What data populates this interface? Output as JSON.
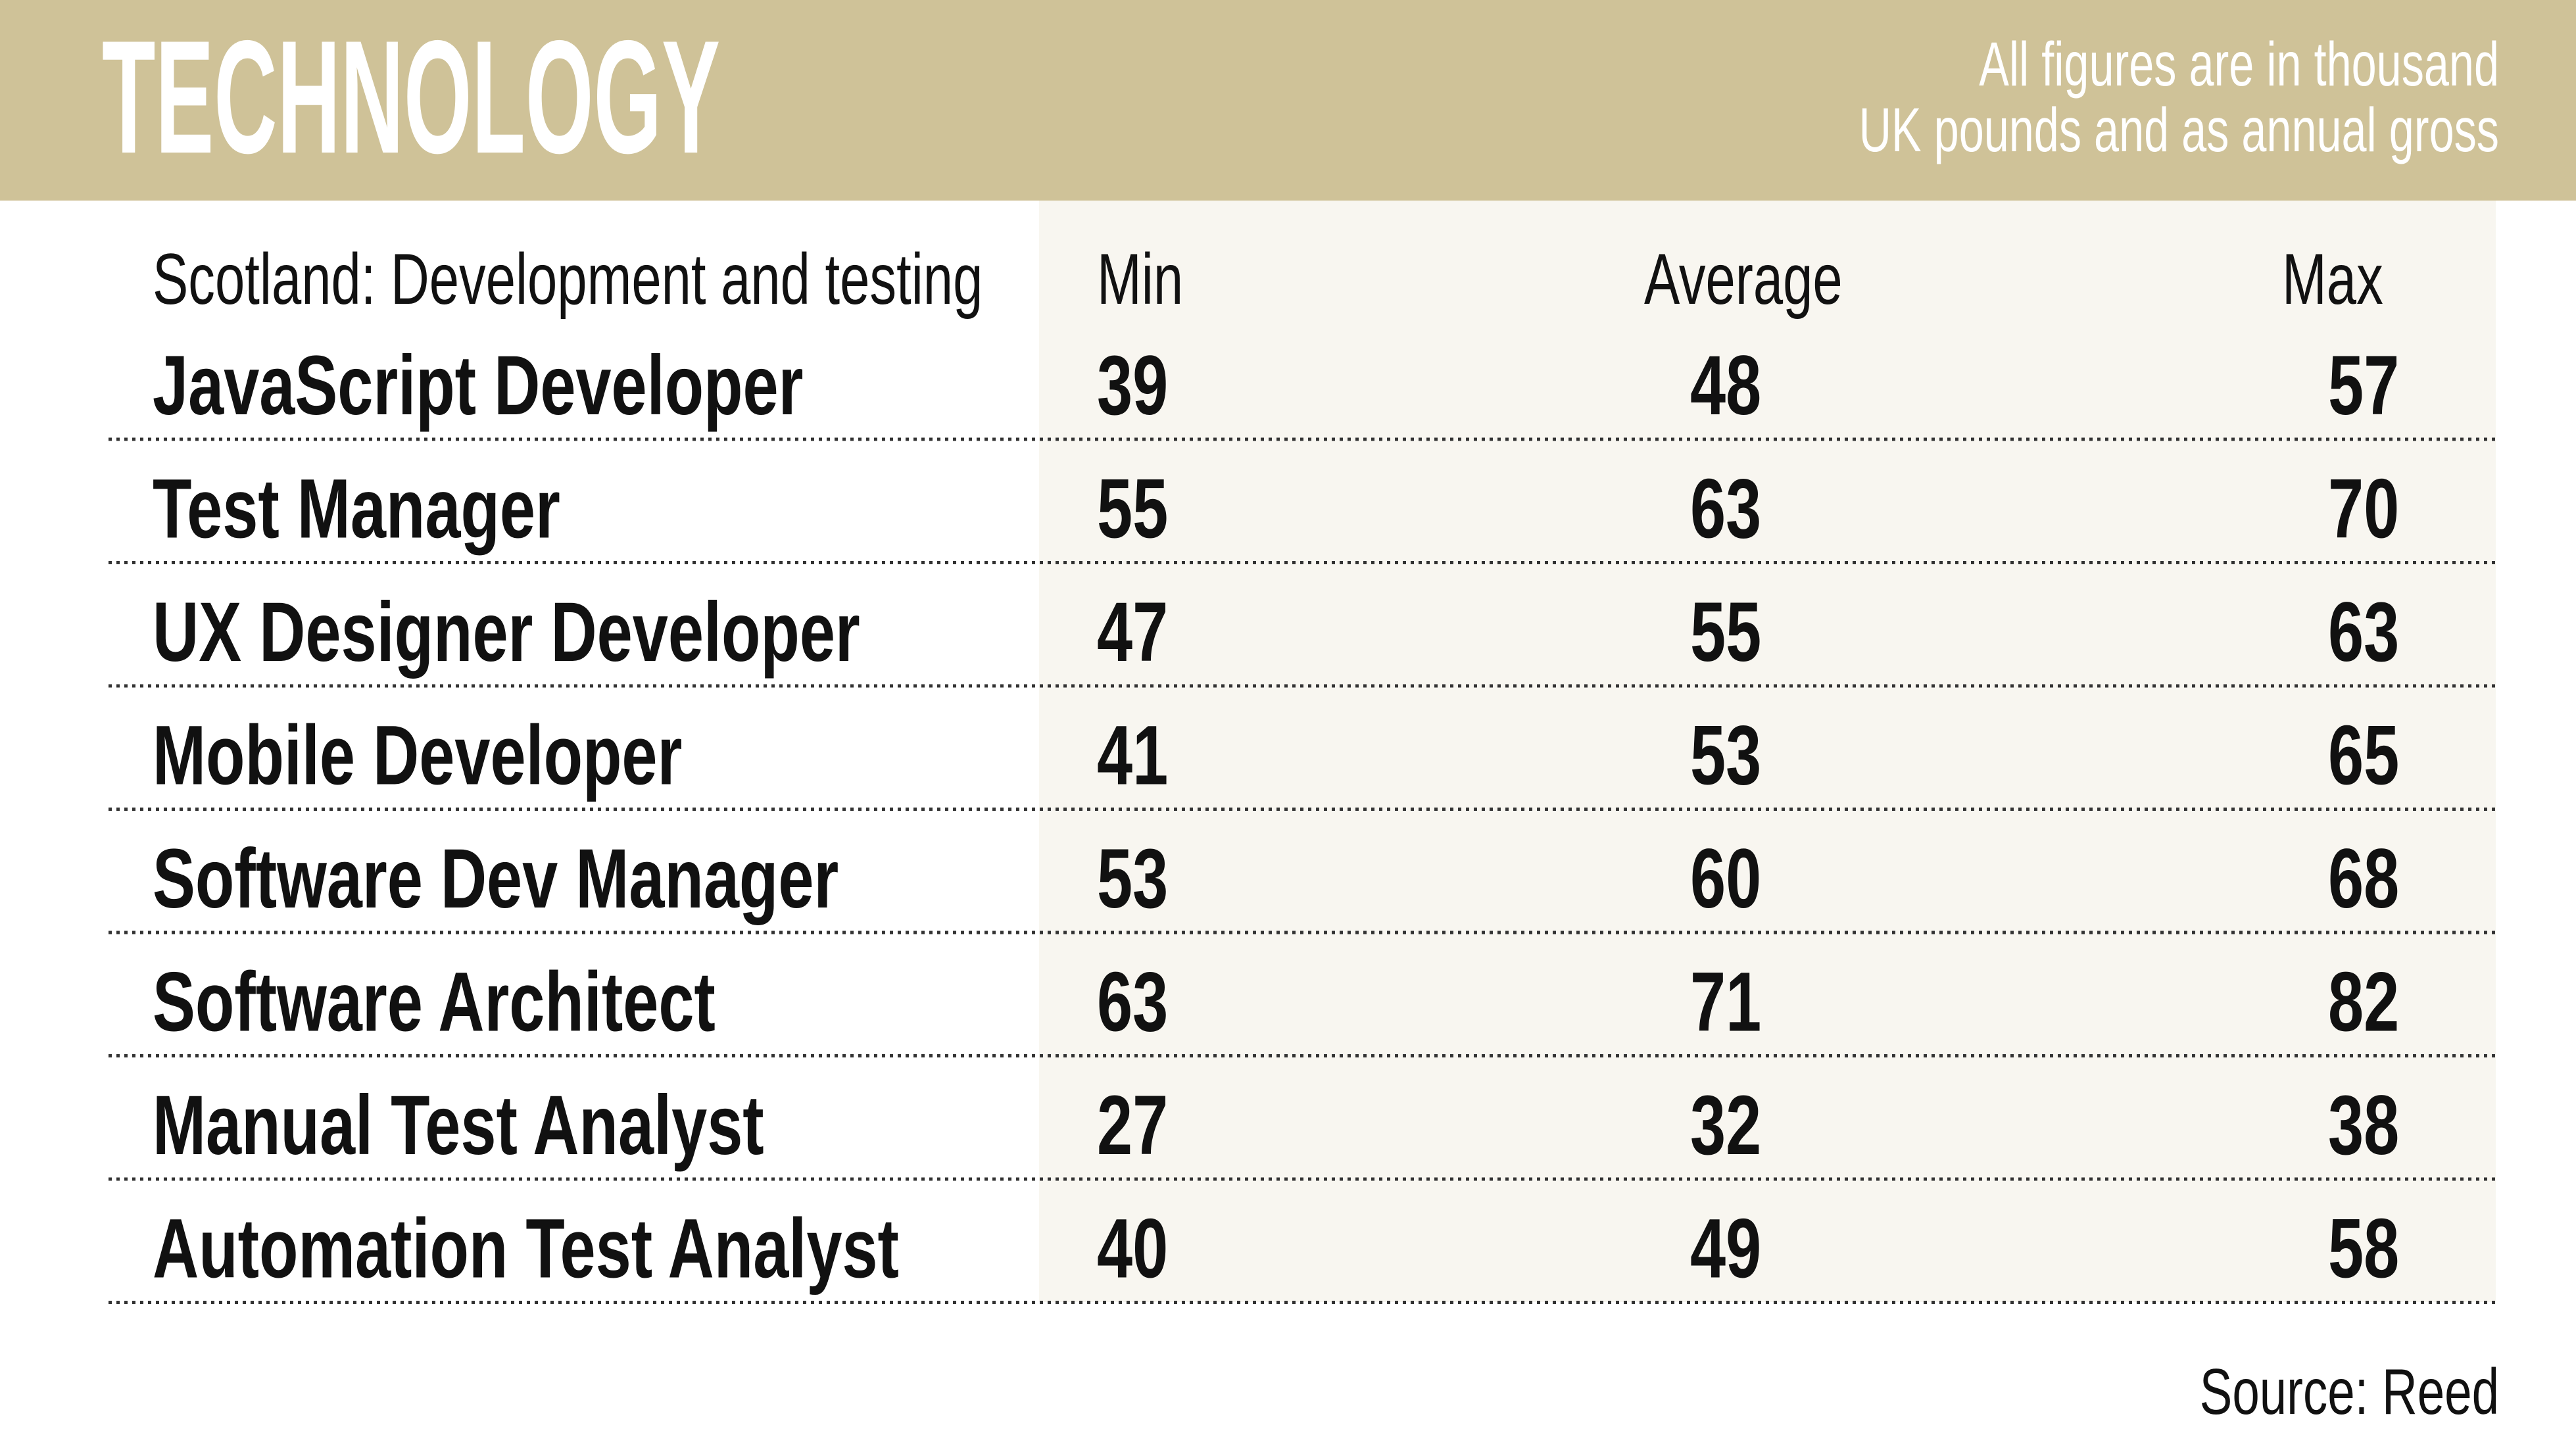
{
  "header": {
    "title": "TECHNOLOGY",
    "note_lines": [
      "All figures are in thousand",
      "UK pounds and as annual gross"
    ]
  },
  "table": {
    "columns": [
      "Scotland: Development and testing",
      "Min",
      "Average",
      "Max"
    ],
    "rows": [
      [
        "JavaScript Developer",
        39,
        48,
        57
      ],
      [
        "Test Manager",
        55,
        63,
        70
      ],
      [
        "UX Designer Developer",
        47,
        55,
        63
      ],
      [
        "Mobile Developer",
        41,
        53,
        65
      ],
      [
        "Software Dev Manager",
        53,
        60,
        68
      ],
      [
        "Software Architect",
        63,
        71,
        82
      ],
      [
        "Manual Test Analyst",
        27,
        32,
        38
      ],
      [
        "Automation Test Analyst",
        40,
        49,
        58
      ]
    ]
  },
  "footer": {
    "source": "Source: Reed"
  }
}
